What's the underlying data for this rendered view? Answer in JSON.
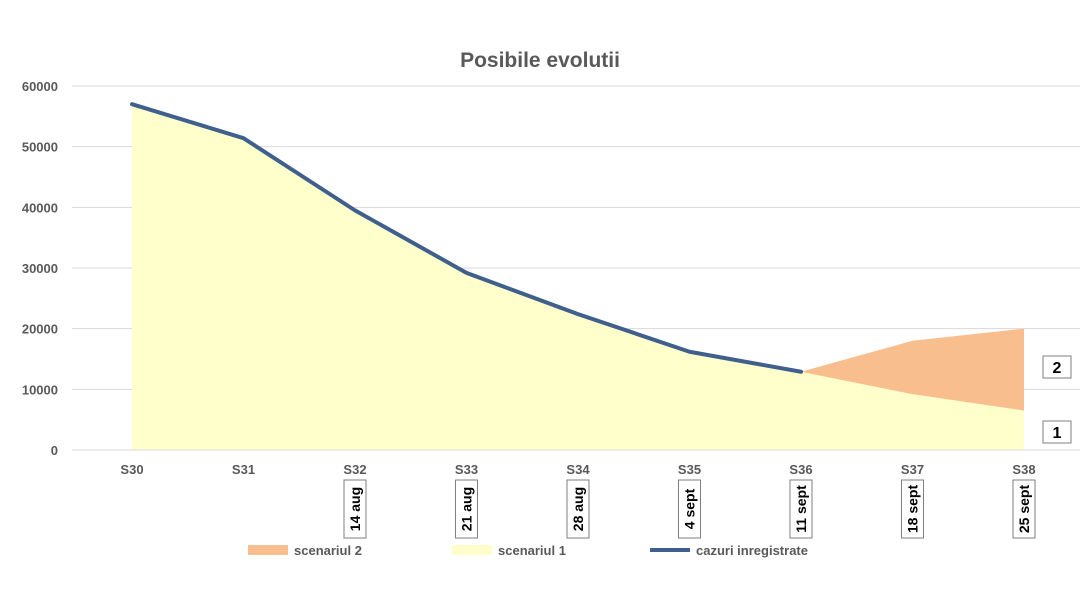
{
  "chart_data": {
    "type": "area",
    "title": "Posibile evolutii",
    "xlabel": "",
    "ylabel": "",
    "ylim": [
      0,
      60000
    ],
    "yticks": [
      0,
      10000,
      20000,
      30000,
      40000,
      50000,
      60000
    ],
    "grid": true,
    "legend_position": "bottom",
    "categories": [
      "S30",
      "S31",
      "S32",
      "S33",
      "S34",
      "S35",
      "S36",
      "S37",
      "S38"
    ],
    "date_labels": [
      "",
      "",
      "14 aug",
      "21 aug",
      "28 aug",
      "4 sept",
      "11 sept",
      "18 sept",
      "25 sept"
    ],
    "series": [
      {
        "name": "scenariul 2",
        "kind": "area",
        "color": "#f8be8e",
        "values": [
          null,
          null,
          null,
          null,
          null,
          null,
          12900,
          18000,
          20000
        ]
      },
      {
        "name": "scenariul 1",
        "kind": "area",
        "color": "#ffffcc",
        "values": [
          57000,
          51400,
          39500,
          29200,
          22400,
          16200,
          12900,
          9200,
          6500
        ]
      },
      {
        "name": "cazuri inregistrate",
        "kind": "line",
        "color": "#3f5f8c",
        "values": [
          57000,
          51400,
          39500,
          29200,
          22400,
          16200,
          12900,
          null,
          null
        ]
      }
    ],
    "annotations": [
      {
        "text": "2",
        "series": "scenariul 2"
      },
      {
        "text": "1",
        "series": "scenariul 1"
      }
    ]
  }
}
